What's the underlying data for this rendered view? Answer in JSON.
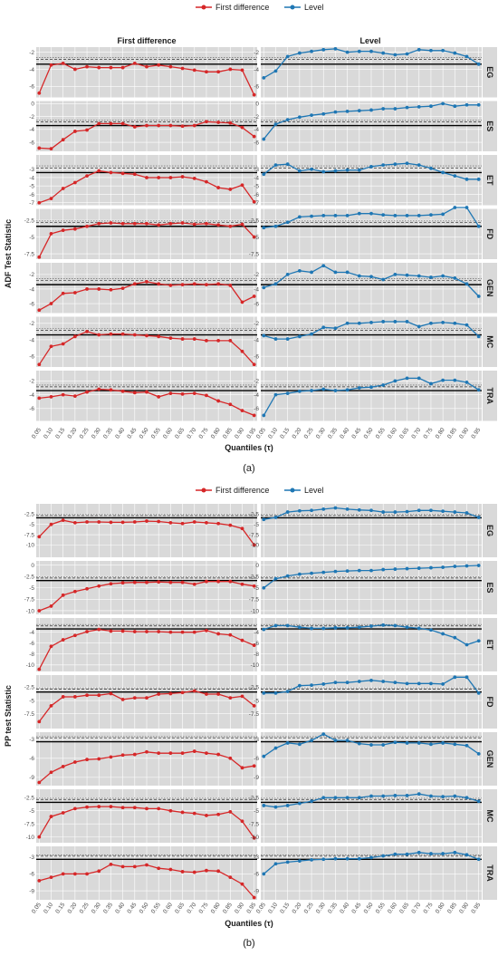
{
  "legend": {
    "fd_label": "First difference",
    "lv_label": "Level",
    "fd_color": "#d62728",
    "lv_color": "#1f77b4"
  },
  "chart_data": [
    {
      "type": "line",
      "caption": "(a)",
      "ylabel": "ADF Test Statistic",
      "xlabel": "Quantiles (τ)",
      "column_titles": [
        "First difference",
        "Level"
      ],
      "x": [
        0.05,
        0.1,
        0.15,
        0.2,
        0.25,
        0.3,
        0.35,
        0.4,
        0.45,
        0.5,
        0.55,
        0.6,
        0.65,
        0.7,
        0.75,
        0.8,
        0.85,
        0.9,
        0.95
      ],
      "x_tick_labels": [
        "0.05",
        "0.10",
        "0.15",
        "0.20",
        "0.25",
        "0.30",
        "0.35",
        "0.40",
        "0.45",
        "0.50",
        "0.55",
        "0.60",
        "0.65",
        "0.70",
        "0.75",
        "0.80",
        "0.85",
        "0.90",
        "0.95"
      ],
      "panels": [
        {
          "name": "EG",
          "ylim": [
            -7.3,
            -1.4
          ],
          "yticks": [
            -2,
            -4,
            -6
          ],
          "crit": [
            -3.4,
            -2.85,
            -2.6
          ],
          "fd": [
            -6.8,
            -3.5,
            -3.3,
            -4.0,
            -3.7,
            -3.8,
            -3.8,
            -3.8,
            -3.3,
            -3.7,
            -3.5,
            -3.7,
            -3.9,
            -4.1,
            -4.3,
            -4.3,
            -4.0,
            -4.1,
            -7.0
          ],
          "lv": [
            -5.0,
            -4.2,
            -2.5,
            -2.1,
            -1.9,
            -1.7,
            -1.6,
            -2.0,
            -1.9,
            -1.9,
            -2.1,
            -2.3,
            -2.2,
            -1.7,
            -1.8,
            -1.8,
            -2.1,
            -2.5,
            -3.4
          ]
        },
        {
          "name": "ES",
          "ylim": [
            -7.4,
            0.4
          ],
          "yticks": [
            0,
            -2,
            -4,
            -6
          ],
          "crit": [
            -3.4,
            -2.85,
            -2.6
          ],
          "fd": [
            -6.9,
            -7.0,
            -5.6,
            -4.3,
            -4.1,
            -3.1,
            -3.1,
            -3.1,
            -3.6,
            -3.4,
            -3.4,
            -3.4,
            -3.5,
            -3.4,
            -2.8,
            -2.9,
            -3.0,
            -3.7,
            -5.1
          ],
          "lv": [
            -5.5,
            -3.2,
            -2.5,
            -2.1,
            -1.8,
            -1.6,
            -1.3,
            -1.2,
            -1.1,
            -1.0,
            -0.8,
            -0.8,
            -0.6,
            -0.5,
            -0.4,
            0.0,
            -0.4,
            -0.2,
            -0.2
          ]
        },
        {
          "name": "ET",
          "ylim": [
            -7.3,
            -1.3
          ],
          "yticks": [
            -3,
            -4,
            -5,
            -6,
            -7
          ],
          "crit": [
            -3.4,
            -2.85,
            -2.6
          ],
          "fd": [
            -7.0,
            -6.5,
            -5.3,
            -4.6,
            -3.8,
            -3.2,
            -3.4,
            -3.5,
            -3.6,
            -4.0,
            -4.0,
            -4.0,
            -3.9,
            -4.1,
            -4.5,
            -5.2,
            -5.4,
            -4.9,
            -6.9
          ],
          "lv": [
            -3.6,
            -2.5,
            -2.4,
            -3.2,
            -3.0,
            -3.3,
            -3.2,
            -3.1,
            -3.1,
            -2.7,
            -2.5,
            -2.4,
            -2.3,
            -2.5,
            -2.9,
            -3.4,
            -3.8,
            -4.2,
            -4.2
          ]
        },
        {
          "name": "FD",
          "ylim": [
            -8.3,
            -0.8
          ],
          "yticks": [
            -2.5,
            -5.0,
            -7.5
          ],
          "crit": [
            -3.4,
            -2.85,
            -2.6
          ],
          "fd": [
            -8.0,
            -4.5,
            -4.0,
            -3.8,
            -3.4,
            -3.0,
            -2.9,
            -3.0,
            -3.0,
            -3.0,
            -3.2,
            -3.0,
            -2.9,
            -3.1,
            -3.0,
            -3.2,
            -3.4,
            -3.1,
            -5.0
          ],
          "lv": [
            -3.6,
            -3.4,
            -2.8,
            -2.0,
            -1.9,
            -1.8,
            -1.8,
            -1.8,
            -1.5,
            -1.5,
            -1.7,
            -1.8,
            -1.8,
            -1.8,
            -1.7,
            -1.6,
            -0.6,
            -0.6,
            -3.4
          ]
        },
        {
          "name": "GEN",
          "ylim": [
            -7.3,
            -0.4
          ],
          "yticks": [
            -2,
            -4,
            -6
          ],
          "crit": [
            -3.4,
            -2.85,
            -2.6
          ],
          "fd": [
            -6.9,
            -6.0,
            -4.6,
            -4.5,
            -4.0,
            -4.0,
            -4.1,
            -3.9,
            -3.3,
            -3.0,
            -3.3,
            -3.5,
            -3.4,
            -3.3,
            -3.4,
            -3.3,
            -3.5,
            -5.8,
            -5.0
          ],
          "lv": [
            -3.8,
            -3.3,
            -2.0,
            -1.5,
            -1.7,
            -0.8,
            -1.7,
            -1.7,
            -2.2,
            -2.3,
            -2.7,
            -2.0,
            -2.1,
            -2.2,
            -2.4,
            -2.2,
            -2.5,
            -3.3,
            -5.0
          ]
        },
        {
          "name": "MC",
          "ylim": [
            -7.3,
            -1.2
          ],
          "yticks": [
            -2,
            -4,
            -6
          ],
          "crit": [
            -3.4,
            -2.85,
            -2.6
          ],
          "fd": [
            -7.0,
            -4.8,
            -4.5,
            -3.6,
            -3.0,
            -3.4,
            -3.3,
            -3.3,
            -3.4,
            -3.5,
            -3.6,
            -3.8,
            -3.9,
            -3.9,
            -4.1,
            -4.1,
            -4.1,
            -5.4,
            -7.0
          ],
          "lv": [
            -3.5,
            -3.9,
            -3.9,
            -3.6,
            -3.3,
            -2.5,
            -2.6,
            -2.0,
            -2.0,
            -1.9,
            -1.8,
            -1.8,
            -1.8,
            -2.4,
            -2.0,
            -1.9,
            -2.0,
            -2.2,
            -3.6
          ]
        },
        {
          "name": "TRA",
          "ylim": [
            -7.8,
            -0.5
          ],
          "yticks": [
            -2,
            -4,
            -6
          ],
          "crit": [
            -3.4,
            -2.85,
            -2.6
          ],
          "fd": [
            -4.5,
            -4.3,
            -4.0,
            -4.2,
            -3.6,
            -3.2,
            -3.3,
            -3.5,
            -3.7,
            -3.6,
            -4.3,
            -3.8,
            -3.9,
            -3.8,
            -4.1,
            -4.9,
            -5.4,
            -6.3,
            -7.0
          ],
          "lv": [
            -7.0,
            -4.0,
            -3.8,
            -3.5,
            -3.4,
            -3.2,
            -3.4,
            -3.3,
            -3.0,
            -2.9,
            -2.6,
            -2.0,
            -1.6,
            -1.6,
            -2.4,
            -1.9,
            -1.9,
            -2.2,
            -3.3
          ]
        }
      ]
    },
    {
      "type": "line",
      "caption": "(b)",
      "ylabel": "PP test Statistic",
      "xlabel": "Quantiles (τ)",
      "column_titles": [],
      "x": [
        0.05,
        0.1,
        0.15,
        0.2,
        0.25,
        0.3,
        0.35,
        0.4,
        0.45,
        0.5,
        0.55,
        0.6,
        0.65,
        0.7,
        0.75,
        0.8,
        0.85,
        0.9,
        0.95
      ],
      "x_tick_labels": [
        "0.05",
        "0.10",
        "0.15",
        "0.20",
        "0.25",
        "0.30",
        "0.35",
        "0.40",
        "0.45",
        "0.50",
        "0.55",
        "0.60",
        "0.65",
        "0.70",
        "0.75",
        "0.80",
        "0.85",
        "0.90",
        "0.95"
      ],
      "panels": [
        {
          "name": "EG",
          "ylim": [
            -13.0,
            0.0
          ],
          "yticks": [
            -2.5,
            -5.0,
            -7.5,
            -10.0
          ],
          "crit": [
            -3.4,
            -2.85,
            -2.6
          ],
          "fd": [
            -8.0,
            -5.0,
            -4.0,
            -4.6,
            -4.4,
            -4.4,
            -4.5,
            -4.5,
            -4.4,
            -4.2,
            -4.3,
            -4.6,
            -4.8,
            -4.4,
            -4.6,
            -4.8,
            -5.2,
            -6.0,
            -10.0
          ],
          "lv": [
            -3.8,
            -3.3,
            -2.0,
            -1.7,
            -1.6,
            -1.3,
            -1.0,
            -1.3,
            -1.5,
            -1.6,
            -2.0,
            -2.0,
            -1.9,
            -1.6,
            -1.6,
            -1.8,
            -2.0,
            -2.2,
            -3.3
          ]
        },
        {
          "name": "ES",
          "ylim": [
            -10.8,
            0.9
          ],
          "yticks": [
            0.0,
            -2.5,
            -5.0,
            -7.5,
            -10.0
          ],
          "crit": [
            -3.4,
            -2.85,
            -2.6
          ],
          "fd": [
            -10.0,
            -9.0,
            -6.6,
            -5.8,
            -5.2,
            -4.6,
            -4.1,
            -3.9,
            -3.8,
            -3.8,
            -3.7,
            -3.8,
            -3.8,
            -4.2,
            -3.6,
            -3.6,
            -3.6,
            -4.2,
            -4.6
          ],
          "lv": [
            -5.0,
            -3.0,
            -2.4,
            -2.0,
            -1.8,
            -1.6,
            -1.4,
            -1.3,
            -1.2,
            -1.2,
            -1.0,
            -0.9,
            -0.8,
            -0.7,
            -0.6,
            -0.5,
            -0.3,
            -0.2,
            -0.1
          ]
        },
        {
          "name": "ET",
          "ylim": [
            -11.2,
            -1.4
          ],
          "yticks": [
            -4,
            -6,
            -8,
            -10
          ],
          "crit": [
            -3.4,
            -2.85,
            -2.6
          ],
          "fd": [
            -10.8,
            -6.6,
            -5.4,
            -4.6,
            -3.9,
            -3.5,
            -3.8,
            -3.8,
            -3.9,
            -3.9,
            -3.9,
            -4.0,
            -4.0,
            -4.0,
            -3.7,
            -4.3,
            -4.5,
            -5.5,
            -6.4
          ],
          "lv": [
            -3.5,
            -2.8,
            -2.8,
            -3.1,
            -3.3,
            -3.3,
            -3.2,
            -3.2,
            -3.1,
            -2.9,
            -2.7,
            -2.8,
            -3.1,
            -3.3,
            -3.6,
            -4.3,
            -5.0,
            -6.3,
            -5.6
          ]
        },
        {
          "name": "FD",
          "ylim": [
            -10.3,
            -0.2
          ],
          "yticks": [
            -2.5,
            -5.0,
            -7.5
          ],
          "crit": [
            -3.4,
            -2.85,
            -2.6
          ],
          "fd": [
            -9.0,
            -6.0,
            -4.3,
            -4.3,
            -4.0,
            -4.0,
            -3.7,
            -4.8,
            -4.5,
            -4.5,
            -3.8,
            -3.7,
            -3.5,
            -3.2,
            -3.8,
            -3.8,
            -4.5,
            -4.2,
            -6.0
          ],
          "lv": [
            -3.6,
            -3.6,
            -3.3,
            -2.2,
            -2.1,
            -1.9,
            -1.6,
            -1.6,
            -1.4,
            -1.2,
            -1.4,
            -1.6,
            -1.8,
            -1.8,
            -1.8,
            -1.9,
            -0.6,
            -0.6,
            -3.6
          ]
        },
        {
          "name": "GEN",
          "ylim": [
            -10.3,
            -1.9
          ],
          "yticks": [
            -3,
            -6,
            -9
          ],
          "crit": [
            -3.4,
            -2.85,
            -2.6
          ],
          "fd": [
            -9.8,
            -8.2,
            -7.3,
            -6.6,
            -6.2,
            -6.1,
            -5.8,
            -5.5,
            -5.4,
            -5.0,
            -5.2,
            -5.2,
            -5.2,
            -4.9,
            -5.2,
            -5.4,
            -6.0,
            -7.5,
            -7.2
          ],
          "lv": [
            -5.7,
            -4.4,
            -3.6,
            -3.8,
            -3.2,
            -2.2,
            -3.2,
            -3.2,
            -3.7,
            -3.9,
            -3.9,
            -3.5,
            -3.6,
            -3.6,
            -3.8,
            -3.6,
            -3.8,
            -4.0,
            -5.3
          ]
        },
        {
          "name": "MC",
          "ylim": [
            -11.1,
            -0.9
          ],
          "yticks": [
            -2.5,
            -5.0,
            -7.5,
            -10.0
          ],
          "crit": [
            -3.4,
            -2.85,
            -2.6
          ],
          "fd": [
            -10.0,
            -6.1,
            -5.4,
            -4.6,
            -4.3,
            -4.2,
            -4.2,
            -4.4,
            -4.4,
            -4.6,
            -4.6,
            -5.0,
            -5.3,
            -5.5,
            -5.9,
            -5.7,
            -5.2,
            -7.0,
            -10.2
          ],
          "lv": [
            -4.0,
            -4.3,
            -4.0,
            -3.6,
            -3.2,
            -2.5,
            -2.5,
            -2.5,
            -2.5,
            -2.2,
            -2.2,
            -2.1,
            -2.1,
            -1.8,
            -2.2,
            -2.3,
            -2.2,
            -2.5,
            -3.2
          ]
        },
        {
          "name": "TRA",
          "ylim": [
            -10.6,
            -1.1
          ],
          "yticks": [
            -3,
            -6,
            -9
          ],
          "crit": [
            -3.4,
            -2.85,
            -2.6
          ],
          "fd": [
            -7.2,
            -6.6,
            -6.0,
            -6.0,
            -6.0,
            -5.5,
            -4.3,
            -4.7,
            -4.7,
            -4.4,
            -5.0,
            -5.2,
            -5.6,
            -5.7,
            -5.4,
            -5.5,
            -6.6,
            -7.8,
            -10.2
          ],
          "lv": [
            -6.0,
            -4.2,
            -3.9,
            -3.7,
            -3.5,
            -3.4,
            -3.3,
            -3.3,
            -3.3,
            -3.1,
            -2.8,
            -2.5,
            -2.5,
            -2.2,
            -2.4,
            -2.4,
            -2.2,
            -2.6,
            -3.4
          ]
        }
      ]
    }
  ]
}
